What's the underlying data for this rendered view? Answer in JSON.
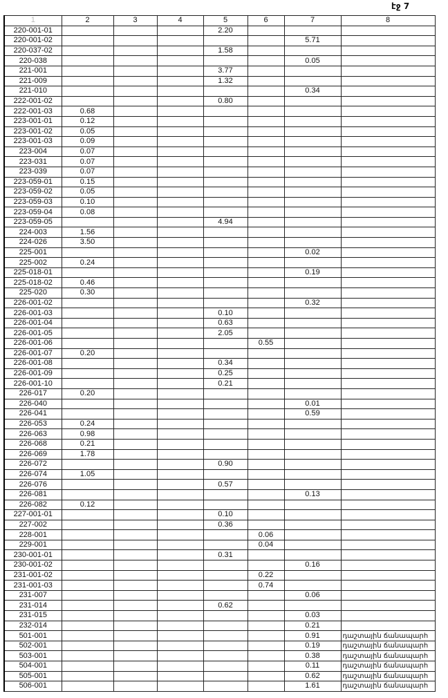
{
  "page_label": "էջ 7",
  "headers": [
    "1",
    "2",
    "3",
    "4",
    "5",
    "6",
    "7",
    "8"
  ],
  "rows": [
    [
      "220-001-01",
      "",
      "",
      "",
      "2.20",
      "",
      "",
      ""
    ],
    [
      "220-001-02",
      "",
      "",
      "",
      "",
      "",
      "5.71",
      ""
    ],
    [
      "220-037-02",
      "",
      "",
      "",
      "1.58",
      "",
      "",
      ""
    ],
    [
      "220-038",
      "",
      "",
      "",
      "",
      "",
      "0.05",
      ""
    ],
    [
      "221-001",
      "",
      "",
      "",
      "3.77",
      "",
      "",
      ""
    ],
    [
      "221-009",
      "",
      "",
      "",
      "1.32",
      "",
      "",
      ""
    ],
    [
      "221-010",
      "",
      "",
      "",
      "",
      "",
      "0.34",
      ""
    ],
    [
      "222-001-02",
      "",
      "",
      "",
      "0.80",
      "",
      "",
      ""
    ],
    [
      "222-001-03",
      "0.68",
      "",
      "",
      "",
      "",
      "",
      ""
    ],
    [
      "223-001-01",
      "0.12",
      "",
      "",
      "",
      "",
      "",
      ""
    ],
    [
      "223-001-02",
      "0.05",
      "",
      "",
      "",
      "",
      "",
      ""
    ],
    [
      "223-001-03",
      "0.09",
      "",
      "",
      "",
      "",
      "",
      ""
    ],
    [
      "223-004",
      "0.07",
      "",
      "",
      "",
      "",
      "",
      ""
    ],
    [
      "223-031",
      "0.07",
      "",
      "",
      "",
      "",
      "",
      ""
    ],
    [
      "223-039",
      "0.07",
      "",
      "",
      "",
      "",
      "",
      ""
    ],
    [
      "223-059-01",
      "0.15",
      "",
      "",
      "",
      "",
      "",
      ""
    ],
    [
      "223-059-02",
      "0.05",
      "",
      "",
      "",
      "",
      "",
      ""
    ],
    [
      "223-059-03",
      "0.10",
      "",
      "",
      "",
      "",
      "",
      ""
    ],
    [
      "223-059-04",
      "0.08",
      "",
      "",
      "",
      "",
      "",
      ""
    ],
    [
      "223-059-05",
      "",
      "",
      "",
      "4.94",
      "",
      "",
      ""
    ],
    [
      "224-003",
      "1.56",
      "",
      "",
      "",
      "",
      "",
      ""
    ],
    [
      "224-026",
      "3.50",
      "",
      "",
      "",
      "",
      "",
      ""
    ],
    [
      "225-001",
      "",
      "",
      "",
      "",
      "",
      "0.02",
      ""
    ],
    [
      "225-002",
      "0.24",
      "",
      "",
      "",
      "",
      "",
      ""
    ],
    [
      "225-018-01",
      "",
      "",
      "",
      "",
      "",
      "0.19",
      ""
    ],
    [
      "225-018-02",
      "0.46",
      "",
      "",
      "",
      "",
      "",
      ""
    ],
    [
      "225-020",
      "0.30",
      "",
      "",
      "",
      "",
      "",
      ""
    ],
    [
      "226-001-02",
      "",
      "",
      "",
      "",
      "",
      "0.32",
      ""
    ],
    [
      "226-001-03",
      "",
      "",
      "",
      "0.10",
      "",
      "",
      ""
    ],
    [
      "226-001-04",
      "",
      "",
      "",
      "0.63",
      "",
      "",
      ""
    ],
    [
      "226-001-05",
      "",
      "",
      "",
      "2.05",
      "",
      "",
      ""
    ],
    [
      "226-001-06",
      "",
      "",
      "",
      "",
      "0.55",
      "",
      ""
    ],
    [
      "226-001-07",
      "0.20",
      "",
      "",
      "",
      "",
      "",
      ""
    ],
    [
      "226-001-08",
      "",
      "",
      "",
      "0.34",
      "",
      "",
      ""
    ],
    [
      "226-001-09",
      "",
      "",
      "",
      "0.25",
      "",
      "",
      ""
    ],
    [
      "226-001-10",
      "",
      "",
      "",
      "0.21",
      "",
      "",
      ""
    ],
    [
      "226-017",
      "0.20",
      "",
      "",
      "",
      "",
      "",
      ""
    ],
    [
      "226-040",
      "",
      "",
      "",
      "",
      "",
      "0.01",
      ""
    ],
    [
      "226-041",
      "",
      "",
      "",
      "",
      "",
      "0.59",
      ""
    ],
    [
      "226-053",
      "0.24",
      "",
      "",
      "",
      "",
      "",
      ""
    ],
    [
      "226-063",
      "0.98",
      "",
      "",
      "",
      "",
      "",
      ""
    ],
    [
      "226-068",
      "0.21",
      "",
      "",
      "",
      "",
      "",
      ""
    ],
    [
      "226-069",
      "1.78",
      "",
      "",
      "",
      "",
      "",
      ""
    ],
    [
      "226-072",
      "",
      "",
      "",
      "0.90",
      "",
      "",
      ""
    ],
    [
      "226-074",
      "1.05",
      "",
      "",
      "",
      "",
      "",
      ""
    ],
    [
      "226-076",
      "",
      "",
      "",
      "0.57",
      "",
      "",
      ""
    ],
    [
      "226-081",
      "",
      "",
      "",
      "",
      "",
      "0.13",
      ""
    ],
    [
      "226-082",
      "0.12",
      "",
      "",
      "",
      "",
      "",
      ""
    ],
    [
      "227-001-01",
      "",
      "",
      "",
      "0.10",
      "",
      "",
      ""
    ],
    [
      "227-002",
      "",
      "",
      "",
      "0.36",
      "",
      "",
      ""
    ],
    [
      "228-001",
      "",
      "",
      "",
      "",
      "0.06",
      "",
      ""
    ],
    [
      "229-001",
      "",
      "",
      "",
      "",
      "0.04",
      "",
      ""
    ],
    [
      "230-001-01",
      "",
      "",
      "",
      "0.31",
      "",
      "",
      ""
    ],
    [
      "230-001-02",
      "",
      "",
      "",
      "",
      "",
      "0.16",
      ""
    ],
    [
      "231-001-02",
      "",
      "",
      "",
      "",
      "0.22",
      "",
      ""
    ],
    [
      "231-001-03",
      "",
      "",
      "",
      "",
      "0.74",
      "",
      ""
    ],
    [
      "231-007",
      "",
      "",
      "",
      "",
      "",
      "0.06",
      ""
    ],
    [
      "231-014",
      "",
      "",
      "",
      "0.62",
      "",
      "",
      ""
    ],
    [
      "231-015",
      "",
      "",
      "",
      "",
      "",
      "0.03",
      ""
    ],
    [
      "232-014",
      "",
      "",
      "",
      "",
      "",
      "0.21",
      ""
    ],
    [
      "501-001",
      "",
      "",
      "",
      "",
      "",
      "0.91",
      "դաշտային ճանապարհ"
    ],
    [
      "502-001",
      "",
      "",
      "",
      "",
      "",
      "0.19",
      "դաշտային ճանապարհ"
    ],
    [
      "503-001",
      "",
      "",
      "",
      "",
      "",
      "0.38",
      "դաշտային ճանապարհ"
    ],
    [
      "504-001",
      "",
      "",
      "",
      "",
      "",
      "0.11",
      "դաշտային ճանապարհ"
    ],
    [
      "505-001",
      "",
      "",
      "",
      "",
      "",
      "0.62",
      "դաշտային ճանապարհ"
    ],
    [
      "506-001",
      "",
      "",
      "",
      "",
      "",
      "1.61",
      "դաշտային ճանապարհ"
    ]
  ]
}
